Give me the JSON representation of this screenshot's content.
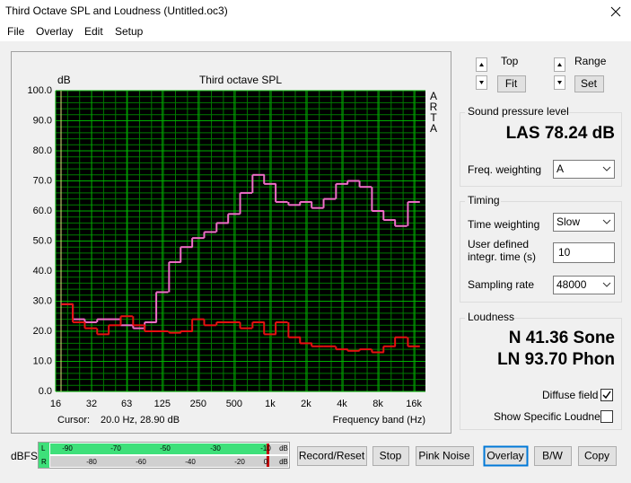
{
  "window": {
    "title": "Third Octave SPL and Loudness (Untitled.oc3)"
  },
  "menu": [
    "File",
    "Overlay",
    "Edit",
    "Setup"
  ],
  "chart_data": {
    "type": "step",
    "title": "Third octave SPL",
    "y_unit": "dB",
    "brand": "ARTA",
    "xlabel": "Frequency band (Hz)",
    "cursor_label": "Cursor:",
    "cursor_value": "20.0 Hz, 28.90 dB",
    "x": [
      20,
      25,
      31.5,
      40,
      50,
      63,
      80,
      100,
      125,
      160,
      200,
      250,
      315,
      400,
      500,
      630,
      800,
      1000,
      1250,
      1600,
      2000,
      2500,
      3150,
      4000,
      5000,
      6300,
      8000,
      10000,
      12500,
      16000
    ],
    "series": [
      {
        "color": "#f06ec8",
        "values": [
          29,
          24,
          23,
          24,
          24,
          22,
          21,
          23,
          33,
          43,
          48,
          51,
          53,
          56,
          59,
          66,
          72,
          69,
          63,
          62,
          63,
          61,
          64,
          69,
          70,
          68,
          60,
          57,
          55,
          63
        ]
      },
      {
        "color": "#e81010",
        "values": [
          29,
          23,
          21,
          19,
          22,
          25,
          22,
          20,
          20,
          19.5,
          20,
          24,
          22,
          23,
          23,
          21,
          23,
          19,
          23,
          18,
          16,
          15,
          15,
          14,
          13.5,
          14,
          13,
          15,
          18,
          15
        ]
      }
    ],
    "xscale": "log",
    "xlim": [
      16,
      20000
    ],
    "xticks": [
      16,
      32,
      63,
      125,
      250,
      500,
      {
        "value": 1000,
        "label": "1k"
      },
      {
        "value": 2000,
        "label": "2k"
      },
      {
        "value": 4000,
        "label": "4k"
      },
      {
        "value": 8000,
        "label": "8k"
      },
      {
        "value": 16000,
        "label": "16k"
      }
    ],
    "ylim": [
      0,
      100
    ],
    "yticks": [
      {
        "value": 0,
        "label": "0.0"
      },
      {
        "value": 10,
        "label": "10.0"
      },
      {
        "value": 20,
        "label": "20.0"
      },
      {
        "value": 30,
        "label": "30.0"
      },
      {
        "value": 40,
        "label": "40.0"
      },
      {
        "value": 50,
        "label": "50.0"
      },
      {
        "value": 60,
        "label": "60.0"
      },
      {
        "value": 70,
        "label": "70.0"
      },
      {
        "value": 80,
        "label": "80.0"
      },
      {
        "value": 90,
        "label": "90.0"
      },
      {
        "value": 100,
        "label": "100.0"
      }
    ],
    "grid": true
  },
  "view": {
    "top": "Top",
    "fit": "Fit",
    "range": "Range",
    "set": "Set"
  },
  "spl": {
    "title": "Sound pressure level",
    "reading": "LAS 78.24 dB",
    "weighting_label": "Freq. weighting",
    "weighting": "A"
  },
  "timing": {
    "title": "Timing",
    "time_weighting_label": "Time weighting",
    "time_weighting": "Slow",
    "integr_label": [
      "User defined",
      "integr. time (s)"
    ],
    "integr_time": "10",
    "sampling_label": "Sampling rate",
    "sampling_rate": "48000"
  },
  "loudness": {
    "title": "Loudness",
    "sone": "N 41.36 Sone",
    "phon": "LN 93.70 Phon",
    "diffuse": "Diffuse field",
    "specific": "Show Specific Loudness"
  },
  "meter": {
    "label": "dBFS",
    "left": {
      "channel": "L",
      "scale": [
        "-90",
        "-70",
        "-50",
        "-30",
        "-10"
      ],
      "unit": "dB"
    },
    "right": {
      "channel": "R",
      "scale": [
        "-80",
        "-60",
        "-40",
        "-20",
        "0"
      ],
      "unit": "dB"
    }
  },
  "buttons": [
    "Record/Reset",
    "Stop",
    "Pink Noise",
    "Overlay",
    "B/W",
    "Copy"
  ]
}
